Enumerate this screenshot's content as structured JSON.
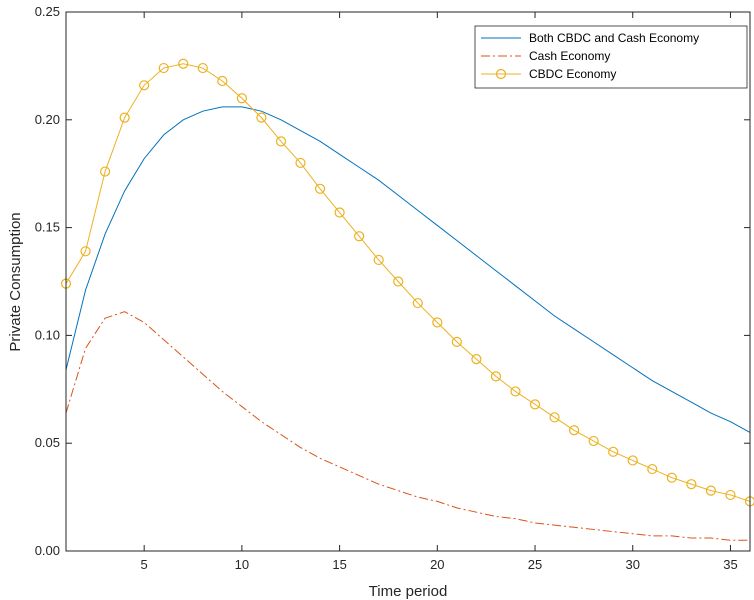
{
  "chart_data": {
    "type": "line",
    "title": "",
    "xlabel": "Time period",
    "ylabel": "Private Consumption",
    "xlim": [
      1,
      36
    ],
    "ylim": [
      0,
      0.25
    ],
    "x_ticks": [
      5,
      10,
      15,
      20,
      25,
      30,
      35
    ],
    "y_ticks": [
      0.0,
      0.05,
      0.1,
      0.15,
      0.2,
      0.25
    ],
    "y_tick_labels": [
      "0.00",
      "0.05",
      "0.10",
      "0.15",
      "0.20",
      "0.25"
    ],
    "grid": false,
    "legend_position": "top-right",
    "x": [
      1,
      2,
      3,
      4,
      5,
      6,
      7,
      8,
      9,
      10,
      11,
      12,
      13,
      14,
      15,
      16,
      17,
      18,
      19,
      20,
      21,
      22,
      23,
      24,
      25,
      26,
      27,
      28,
      29,
      30,
      31,
      32,
      33,
      34,
      35,
      36
    ],
    "series": [
      {
        "name": "Both CBDC and Cash Economy",
        "color": "#0072BD",
        "style": "solid",
        "marker": "none",
        "values": [
          0.084,
          0.121,
          0.147,
          0.167,
          0.182,
          0.193,
          0.2,
          0.204,
          0.206,
          0.206,
          0.204,
          0.2,
          0.195,
          0.19,
          0.184,
          0.178,
          0.172,
          0.165,
          0.158,
          0.151,
          0.144,
          0.137,
          0.13,
          0.123,
          0.116,
          0.109,
          0.103,
          0.097,
          0.091,
          0.085,
          0.079,
          0.074,
          0.069,
          0.064,
          0.06,
          0.055
        ]
      },
      {
        "name": "Cash Economy",
        "color": "#D95319",
        "style": "dashdot",
        "marker": "none",
        "values": [
          0.064,
          0.094,
          0.108,
          0.111,
          0.106,
          0.098,
          0.09,
          0.082,
          0.074,
          0.067,
          0.06,
          0.054,
          0.048,
          0.043,
          0.039,
          0.035,
          0.031,
          0.028,
          0.025,
          0.023,
          0.02,
          0.018,
          0.016,
          0.015,
          0.013,
          0.012,
          0.011,
          0.01,
          0.009,
          0.008,
          0.007,
          0.007,
          0.006,
          0.006,
          0.005,
          0.005
        ]
      },
      {
        "name": "CBDC Economy",
        "color": "#EDB120",
        "style": "solid",
        "marker": "circle",
        "values": [
          0.124,
          0.139,
          0.176,
          0.201,
          0.216,
          0.224,
          0.226,
          0.224,
          0.218,
          0.21,
          0.201,
          0.19,
          0.18,
          0.168,
          0.157,
          0.146,
          0.135,
          0.125,
          0.115,
          0.106,
          0.097,
          0.089,
          0.081,
          0.074,
          0.068,
          0.062,
          0.056,
          0.051,
          0.046,
          0.042,
          0.038,
          0.034,
          0.031,
          0.028,
          0.026,
          0.023
        ]
      }
    ]
  }
}
